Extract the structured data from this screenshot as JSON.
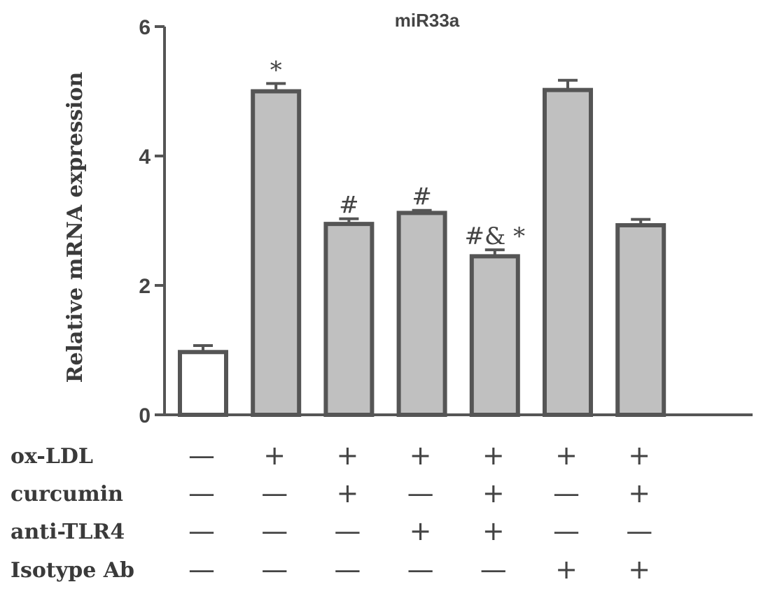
{
  "chart_data": {
    "type": "bar",
    "title": "miR33a",
    "ylabel": "Relative mRNA expression",
    "xlabel": "",
    "ylim": [
      0,
      6
    ],
    "yticks": [
      "0",
      "2",
      "4",
      "6"
    ],
    "ytick_values": [
      0,
      2,
      4,
      6
    ],
    "categories": [
      "1",
      "2",
      "3",
      "4",
      "5",
      "6",
      "7"
    ],
    "values": [
      0.97,
      5.0,
      2.95,
      3.12,
      2.45,
      5.02,
      2.93
    ],
    "errors": [
      0.1,
      0.12,
      0.08,
      0.04,
      0.1,
      0.15,
      0.09
    ],
    "bar_fills": [
      "#ffffff",
      "#c0c0c0",
      "#c0c0c0",
      "#c0c0c0",
      "#c0c0c0",
      "#c0c0c0",
      "#c0c0c0"
    ],
    "annotations": [
      "",
      "*",
      "#",
      "#",
      "#& *",
      "",
      ""
    ],
    "conditions": [
      {
        "label": "ox-LDL",
        "signs": [
          "—",
          "+",
          "+",
          "+",
          "+",
          "+",
          "+"
        ]
      },
      {
        "label": "curcumin",
        "signs": [
          "—",
          "—",
          "+",
          "—",
          "+",
          "—",
          "+"
        ]
      },
      {
        "label": "anti-TLR4",
        "signs": [
          "—",
          "—",
          "—",
          "+",
          "+",
          "—",
          "—"
        ]
      },
      {
        "label": "Isotype Ab",
        "signs": [
          "—",
          "—",
          "—",
          "—",
          "—",
          "+",
          "+"
        ]
      }
    ],
    "colors": {
      "axis": "#555555",
      "bar_edge": "#555555"
    },
    "grid": false,
    "legend": "none"
  }
}
